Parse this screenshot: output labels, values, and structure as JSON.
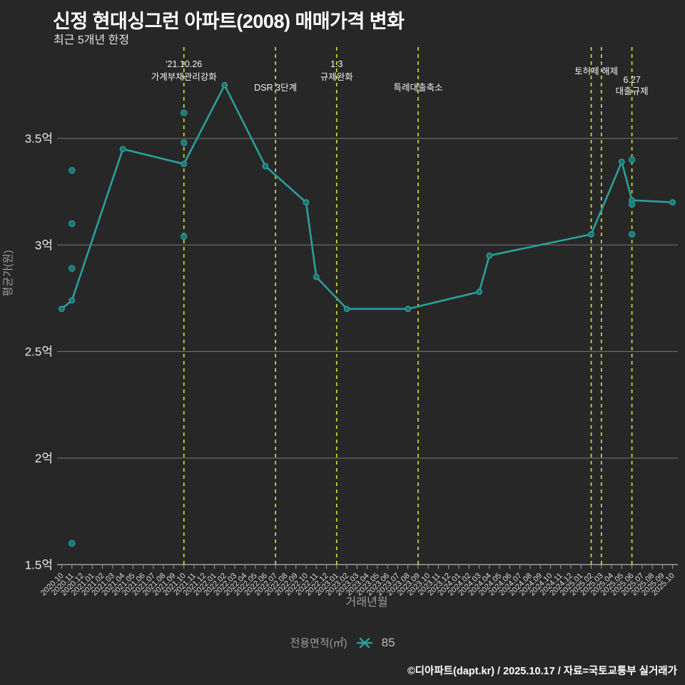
{
  "header": {
    "title": "신정 현대싱그런 아파트(2008) 매매가격 변화",
    "subtitle": "최근 5개년 한정"
  },
  "legend": {
    "label": "전용면적(㎡)",
    "marker_icon": "asterisk-icon",
    "value": "85"
  },
  "footer": {
    "text": "©디아파트(dapt.kr) / 2025.10.17 / 자료=국토교통부 실거래가"
  },
  "colors": {
    "background": "#272727",
    "line": "#29a09a",
    "marker_fill": "#1d6f6d",
    "scatter_fill": "#1f7a77",
    "event_line": "#d2dc2b",
    "grid": "#969696",
    "axis_line": "#a8a8a8",
    "tick_label": "#d8d8d8",
    "y_tick_label": "#e8e8e8",
    "axis_title": "#9e9e9e",
    "annotation": "#f2f2f2",
    "title_text": "#ffffff"
  },
  "chart_data": {
    "type": "line",
    "title": "신정 현대싱그런 아파트(2008) 매매가격 변화",
    "subtitle": "최근 5개년 한정",
    "xlabel": "거래년월",
    "ylabel": "평균가(원)",
    "unit": "억",
    "ylim": [
      1.5,
      3.9
    ],
    "grid": true,
    "y_ticks": [
      {
        "value": 3.5,
        "label": "3.5억"
      },
      {
        "value": 3.0,
        "label": "3억"
      },
      {
        "value": 2.5,
        "label": "2.5억"
      },
      {
        "value": 2.0,
        "label": "2억"
      },
      {
        "value": 1.5,
        "label": "1.5억"
      }
    ],
    "categories": [
      "2020.10",
      "2020.11",
      "2020.12",
      "2021.01",
      "2021.02",
      "2021.03",
      "2021.04",
      "2021.05",
      "2021.06",
      "2021.07",
      "2021.08",
      "2021.09",
      "2021.10",
      "2021.11",
      "2021.12",
      "2022.01",
      "2022.02",
      "2022.03",
      "2022.04",
      "2022.05",
      "2022.06",
      "2022.07",
      "2022.08",
      "2022.09",
      "2022.10",
      "2022.11",
      "2022.12",
      "2023.01",
      "2023.02",
      "2023.03",
      "2023.04",
      "2023.05",
      "2023.06",
      "2023.07",
      "2023.08",
      "2023.09",
      "2023.10",
      "2023.11",
      "2023.12",
      "2024.01",
      "2024.02",
      "2024.03",
      "2024.04",
      "2024.05",
      "2024.06",
      "2024.07",
      "2024.08",
      "2024.09",
      "2024.10",
      "2024.11",
      "2024.12",
      "2025.01",
      "2025.02",
      "2025.03",
      "2025.04",
      "2025.05",
      "2025.06",
      "2025.07",
      "2025.08",
      "2025.09",
      "2025.10"
    ],
    "series": [
      {
        "name": "85",
        "type": "line",
        "points": [
          [
            "2020.10",
            2.7
          ],
          [
            "2020.11",
            2.74
          ],
          [
            "2021.04",
            3.45
          ],
          [
            "2021.10",
            3.38
          ],
          [
            "2022.02",
            3.75
          ],
          [
            "2022.06",
            3.37
          ],
          [
            "2022.10",
            3.2
          ],
          [
            "2022.11",
            2.85
          ],
          [
            "2023.02",
            2.7
          ],
          [
            "2023.08",
            2.7
          ],
          [
            "2024.03",
            2.78
          ],
          [
            "2024.04",
            2.95
          ],
          [
            "2025.02",
            3.05
          ],
          [
            "2025.05",
            3.39
          ],
          [
            "2025.06",
            3.21
          ],
          [
            "2025.10",
            3.2
          ]
        ]
      }
    ],
    "scatter_points": [
      [
        "2020.11",
        3.35
      ],
      [
        "2020.11",
        3.1
      ],
      [
        "2020.11",
        2.89
      ],
      [
        "2020.11",
        1.6
      ],
      [
        "2021.10",
        3.62
      ],
      [
        "2021.10",
        3.48
      ],
      [
        "2021.10",
        3.04
      ],
      [
        "2025.06",
        3.4
      ],
      [
        "2025.06",
        3.19
      ],
      [
        "2025.06",
        3.05
      ]
    ],
    "events": [
      {
        "months": [
          "2021.10"
        ],
        "label_lines": [
          "'21.10.26",
          "가계부채관리강화"
        ],
        "baselines": [
          94,
          112
        ]
      },
      {
        "months": [
          "2022.07"
        ],
        "label_lines": [
          "DSR 3단계"
        ],
        "baselines": [
          127
        ]
      },
      {
        "months": [
          "2023.01"
        ],
        "label_lines": [
          "1.3",
          "규제완화"
        ],
        "baselines": [
          94,
          112
        ]
      },
      {
        "months": [
          "2023.09"
        ],
        "label_lines": [
          "특례대출축소"
        ],
        "baselines": [
          127
        ]
      },
      {
        "months": [
          "2025.02",
          "2025.03"
        ],
        "label_lines": [
          "토허제 해제"
        ],
        "baselines": [
          104
        ]
      },
      {
        "months": [
          "2025.06"
        ],
        "label_lines": [
          "6.27",
          "대출규제"
        ],
        "baselines": [
          116,
          132
        ]
      }
    ],
    "legend_position": "bottom-center"
  }
}
